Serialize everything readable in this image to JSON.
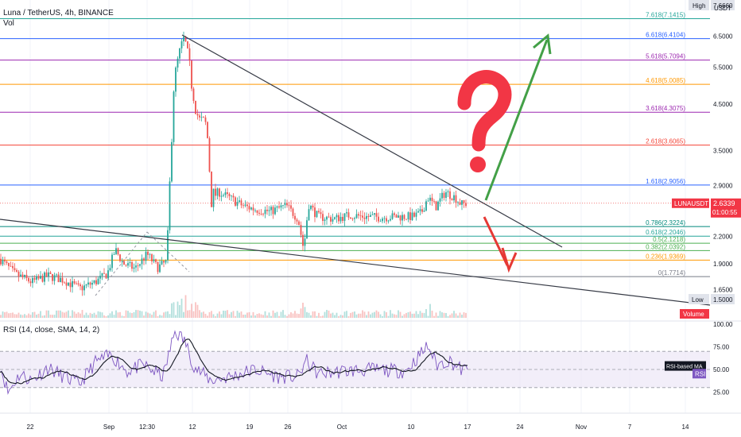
{
  "header": {
    "symbol": "Luna / TetherUS, 4h, BINANCE",
    "vol_label": "Vol",
    "rsi_label": "RSI (14, close, SMA, 14, 2)",
    "unit": "USDT"
  },
  "colors": {
    "up": "#26a69a",
    "down": "#ef5350",
    "rsi_line": "#7e57c2",
    "rsi_band": "#ede7f6",
    "trend_line": "#363a45",
    "arrow_up": "#43a047",
    "arrow_down": "#e53935",
    "question": "#f23645"
  },
  "chart_data": [
    {
      "type": "candlestick",
      "scale": "log",
      "ylim": [
        1.43,
        7.9
      ],
      "x_ticks": [
        "22",
        "Sep",
        "12:30",
        "12",
        "19",
        "26",
        "Oct",
        "10",
        "17",
        "24",
        "Nov",
        "7",
        "14"
      ],
      "price_axis_ticks": [
        "6.5000",
        "5.5000",
        "4.5000",
        "3.5000",
        "2.9000",
        "2.2000",
        "1.9000",
        "1.6500"
      ],
      "fib_levels": [
        {
          "label": "7.618(7.1415)",
          "value": 7.1415,
          "color": "#26a69a"
        },
        {
          "label": "6.618(6.4104)",
          "value": 6.4104,
          "color": "#2962ff"
        },
        {
          "label": "5.618(5.7094)",
          "value": 5.7094,
          "color": "#9c27b0"
        },
        {
          "label": "4.618(5.0085)",
          "value": 5.0085,
          "color": "#ff9800"
        },
        {
          "label": "3.618(4.3075)",
          "value": 4.3075,
          "color": "#9c27b0"
        },
        {
          "label": "2.618(3.6065)",
          "value": 3.6065,
          "color": "#f44336"
        },
        {
          "label": "1.618(2.9056)",
          "value": 2.9056,
          "color": "#2962ff"
        },
        {
          "label": "0.786(2.3224)",
          "value": 2.3224,
          "color": "#00897b"
        },
        {
          "label": "0.618(2.2046)",
          "value": 2.2046,
          "color": "#26a69a"
        },
        {
          "label": "0.5(2.1218)",
          "value": 2.1218,
          "color": "#4caf50"
        },
        {
          "label": "0.382(2.0392)",
          "value": 2.0392,
          "color": "#4caf50"
        },
        {
          "label": "0.236(1.9369)",
          "value": 1.9369,
          "color": "#ff9800"
        },
        {
          "label": "0(1.7714)",
          "value": 1.7714,
          "color": "#787b86"
        }
      ],
      "markers": {
        "high_label": "High",
        "high_value": "7.6660",
        "low_label": "Low",
        "low_value": "1.5000",
        "symbol_tag": "LUNAUSDT",
        "last_price": "2.6339",
        "countdown": "01:00:55",
        "volume_tag": "Volume"
      },
      "anchors": [
        {
          "x": 0,
          "y": 1.95
        },
        {
          "x": 18,
          "y": 1.8
        },
        {
          "x": 40,
          "y": 1.72
        },
        {
          "x": 60,
          "y": 1.78
        },
        {
          "x": 80,
          "y": 1.74
        },
        {
          "x": 100,
          "y": 1.66
        },
        {
          "x": 120,
          "y": 1.72
        },
        {
          "x": 135,
          "y": 1.8
        },
        {
          "x": 145,
          "y": 2.05
        },
        {
          "x": 155,
          "y": 1.9
        },
        {
          "x": 170,
          "y": 1.85
        },
        {
          "x": 185,
          "y": 2.0
        },
        {
          "x": 198,
          "y": 1.86
        },
        {
          "x": 210,
          "y": 1.92
        },
        {
          "x": 218,
          "y": 4.9
        },
        {
          "x": 224,
          "y": 5.7
        },
        {
          "x": 232,
          "y": 6.4
        },
        {
          "x": 240,
          "y": 5.2
        },
        {
          "x": 250,
          "y": 4.1
        },
        {
          "x": 260,
          "y": 4.0
        },
        {
          "x": 266,
          "y": 2.7
        },
        {
          "x": 275,
          "y": 2.8
        },
        {
          "x": 290,
          "y": 2.7
        },
        {
          "x": 305,
          "y": 2.6
        },
        {
          "x": 320,
          "y": 2.55
        },
        {
          "x": 340,
          "y": 2.52
        },
        {
          "x": 360,
          "y": 2.6
        },
        {
          "x": 375,
          "y": 2.42
        },
        {
          "x": 382,
          "y": 2.05
        },
        {
          "x": 388,
          "y": 2.62
        },
        {
          "x": 400,
          "y": 2.45
        },
        {
          "x": 420,
          "y": 2.42
        },
        {
          "x": 440,
          "y": 2.47
        },
        {
          "x": 460,
          "y": 2.45
        },
        {
          "x": 480,
          "y": 2.44
        },
        {
          "x": 500,
          "y": 2.45
        },
        {
          "x": 520,
          "y": 2.45
        },
        {
          "x": 530,
          "y": 2.5
        },
        {
          "x": 538,
          "y": 2.72
        },
        {
          "x": 548,
          "y": 2.58
        },
        {
          "x": 560,
          "y": 2.8
        },
        {
          "x": 572,
          "y": 2.72
        },
        {
          "x": 580,
          "y": 2.62
        },
        {
          "x": 588,
          "y": 2.63
        }
      ],
      "rsi": {
        "ticks": [
          "100.00",
          "75.00",
          "50.00",
          "25.00"
        ],
        "bands": [
          70,
          30
        ],
        "mid": 50,
        "ma_label": "RSI-based MA",
        "rsi_tag": "RSI",
        "anchors": [
          {
            "x": 0,
            "y": 55
          },
          {
            "x": 10,
            "y": 25
          },
          {
            "x": 25,
            "y": 45
          },
          {
            "x": 40,
            "y": 38
          },
          {
            "x": 60,
            "y": 52
          },
          {
            "x": 80,
            "y": 42
          },
          {
            "x": 100,
            "y": 34
          },
          {
            "x": 120,
            "y": 58
          },
          {
            "x": 140,
            "y": 66
          },
          {
            "x": 160,
            "y": 48
          },
          {
            "x": 180,
            "y": 55
          },
          {
            "x": 205,
            "y": 42
          },
          {
            "x": 220,
            "y": 92
          },
          {
            "x": 232,
            "y": 82
          },
          {
            "x": 245,
            "y": 52
          },
          {
            "x": 265,
            "y": 38
          },
          {
            "x": 290,
            "y": 42
          },
          {
            "x": 320,
            "y": 50
          },
          {
            "x": 350,
            "y": 42
          },
          {
            "x": 375,
            "y": 42
          },
          {
            "x": 385,
            "y": 60
          },
          {
            "x": 400,
            "y": 45
          },
          {
            "x": 430,
            "y": 48
          },
          {
            "x": 470,
            "y": 50
          },
          {
            "x": 510,
            "y": 48
          },
          {
            "x": 538,
            "y": 76
          },
          {
            "x": 550,
            "y": 55
          },
          {
            "x": 565,
            "y": 60
          },
          {
            "x": 580,
            "y": 50
          },
          {
            "x": 588,
            "y": 49
          }
        ]
      }
    }
  ]
}
